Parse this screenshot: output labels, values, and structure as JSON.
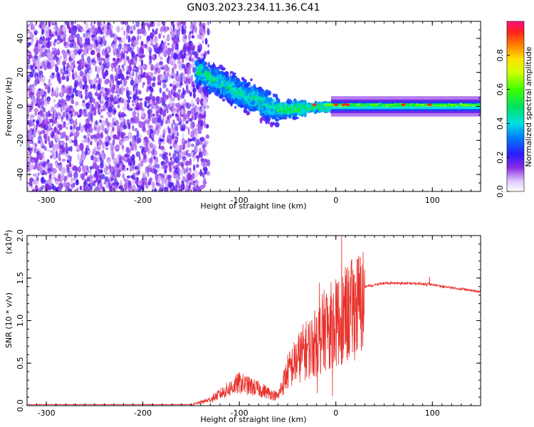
{
  "title": "GN03.2023.234.11.36.C41",
  "chart_data": [
    {
      "type": "heatmap",
      "xlabel": "Height of straight line (km)",
      "ylabel": "Frequency (Hz)",
      "xlim": [
        -320,
        150
      ],
      "ylim": [
        -50,
        50
      ],
      "xticks": [
        -300,
        -200,
        -100,
        0,
        100
      ],
      "xtick_labels": [
        "-300",
        "-200",
        "-100",
        "0",
        "100"
      ],
      "yticks": [
        -40,
        -20,
        0,
        20,
        40
      ],
      "ytick_labels": [
        "-40",
        "-20",
        "0",
        "20",
        "40"
      ],
      "colorbar": {
        "label": "Normalized spectral amplitude",
        "range": [
          0,
          1
        ],
        "ticks": [
          0.0,
          0.2,
          0.4,
          0.6,
          0.8
        ],
        "tick_labels": [
          "0.0",
          "0.2",
          "0.4",
          "0.6",
          "0.8"
        ],
        "colormap": "rainbow"
      },
      "regions": [
        {
          "description_x_range": [
            -320,
            -140
          ],
          "freq_range": [
            -50,
            50
          ],
          "amplitude": 0.15
        },
        {
          "description_x_range": [
            -140,
            -60
          ],
          "freq_range": [
            -25,
            25
          ],
          "amplitude": 0.3
        },
        {
          "description_x_range": [
            -60,
            -10
          ],
          "freq_range": [
            -8,
            8
          ],
          "amplitude": 0.45
        },
        {
          "description_x_range": [
            -10,
            150
          ],
          "freq_range": [
            -3,
            3
          ],
          "amplitude": 0.55
        }
      ],
      "band_center": [
        {
          "x": -140,
          "f": 20
        },
        {
          "x": -100,
          "f": 8
        },
        {
          "x": -60,
          "f": -2
        },
        {
          "x": -30,
          "f": -1
        },
        {
          "x": 0,
          "f": 0
        },
        {
          "x": 150,
          "f": 0
        }
      ],
      "hot_spots": [
        {
          "x": -22,
          "f": 1
        },
        {
          "x": 0,
          "f": 1
        },
        {
          "x": 8,
          "f": 1
        },
        {
          "x": 12,
          "f": 1
        },
        {
          "x": 70,
          "f": 1
        },
        {
          "x": 97,
          "f": 1
        }
      ]
    },
    {
      "type": "line",
      "xlabel": "Height of straight line (km)",
      "ylabel": "SNR (10 * v/v)",
      "yscale_label": "(x10",
      "yscale_exp": "4",
      "yscale_close": ")",
      "xlim": [
        -320,
        150
      ],
      "ylim": [
        0,
        2.0
      ],
      "xticks": [
        -300,
        -200,
        -100,
        0,
        100
      ],
      "xtick_labels": [
        "-300",
        "-200",
        "-100",
        "0",
        "100"
      ],
      "yticks": [
        0.0,
        0.5,
        1.0,
        1.5,
        2.0
      ],
      "ytick_labels": [
        "0.0",
        "0.5",
        "1.0",
        "1.5",
        "2.0"
      ],
      "color": "#e8302a",
      "envelope": [
        {
          "x": -320,
          "y": 0.01
        },
        {
          "x": -150,
          "y": 0.01
        },
        {
          "x": -130,
          "y": 0.08
        },
        {
          "x": -100,
          "y": 0.3
        },
        {
          "x": -80,
          "y": 0.22
        },
        {
          "x": -60,
          "y": 0.12
        },
        {
          "x": -50,
          "y": 0.45
        },
        {
          "x": -35,
          "y": 0.7
        },
        {
          "x": -20,
          "y": 0.85
        },
        {
          "x": -10,
          "y": 1.05
        },
        {
          "x": 0,
          "y": 1.1
        },
        {
          "x": 10,
          "y": 1.2
        },
        {
          "x": 20,
          "y": 1.32
        },
        {
          "x": 30,
          "y": 1.4
        },
        {
          "x": 50,
          "y": 1.44
        },
        {
          "x": 80,
          "y": 1.44
        },
        {
          "x": 100,
          "y": 1.42
        },
        {
          "x": 150,
          "y": 1.34
        }
      ],
      "peaks": [
        {
          "x": 6,
          "y": 2.03
        },
        {
          "x": -17,
          "y": 1.45
        },
        {
          "x": 97,
          "y": 1.52
        }
      ]
    }
  ]
}
